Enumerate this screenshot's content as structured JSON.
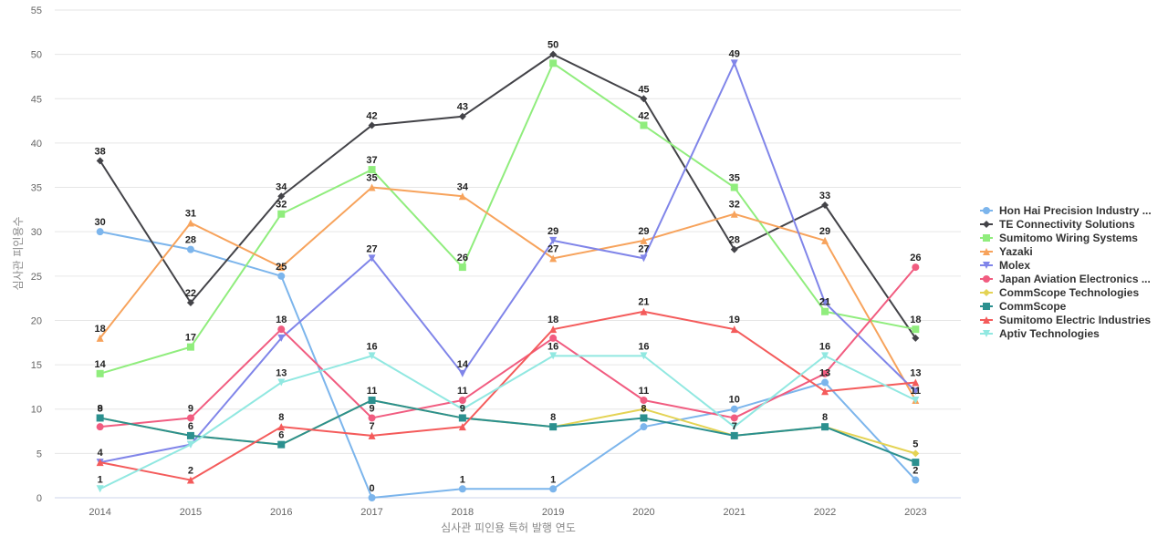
{
  "chart_data": {
    "type": "line",
    "title": "",
    "xlabel": "심사관 피인용 특허 발행 연도",
    "ylabel": "심사관 피인용수",
    "ylim": [
      0,
      55
    ],
    "yticks": [
      0,
      5,
      10,
      15,
      20,
      25,
      30,
      35,
      40,
      45,
      50,
      55
    ],
    "grid": true,
    "legend_position": "right",
    "x": [
      "2014",
      "2015",
      "2016",
      "2017",
      "2018",
      "2019",
      "2020",
      "2021",
      "2022",
      "2023"
    ],
    "series": [
      {
        "name": "Hon Hai Precision Industry ...",
        "color": "#7cb5ec",
        "marker": "circle",
        "values": [
          30,
          28,
          25,
          0,
          1,
          1,
          8,
          10,
          13,
          2
        ]
      },
      {
        "name": "TE Connectivity Solutions",
        "color": "#434348",
        "marker": "diamond",
        "values": [
          38,
          22,
          34,
          42,
          43,
          50,
          45,
          28,
          33,
          18
        ]
      },
      {
        "name": "Sumitomo Wiring Systems",
        "color": "#90ed7d",
        "marker": "square",
        "values": [
          14,
          17,
          32,
          37,
          26,
          49,
          42,
          35,
          21,
          19
        ]
      },
      {
        "name": "Yazaki",
        "color": "#f7a35c",
        "marker": "triangle",
        "values": [
          18,
          31,
          26,
          35,
          34,
          27,
          29,
          32,
          29,
          11
        ]
      },
      {
        "name": "Molex",
        "color": "#8085e9",
        "marker": "triangle-down",
        "values": [
          4,
          6,
          18,
          27,
          14,
          29,
          27,
          49,
          22,
          12
        ]
      },
      {
        "name": "Japan Aviation Electronics ...",
        "color": "#f15c80",
        "marker": "circle",
        "values": [
          8,
          9,
          19,
          9,
          11,
          18,
          11,
          9,
          14,
          26
        ]
      },
      {
        "name": "CommScope Technologies",
        "color": "#e4d354",
        "marker": "diamond",
        "values": [
          9,
          7,
          6,
          11,
          9,
          8,
          10,
          7,
          8,
          5
        ]
      },
      {
        "name": "CommScope",
        "color": "#2b908f",
        "marker": "square",
        "values": [
          9,
          7,
          6,
          11,
          9,
          8,
          9,
          7,
          8,
          4
        ]
      },
      {
        "name": "Sumitomo Electric Industries",
        "color": "#f45b5b",
        "marker": "triangle",
        "values": [
          4,
          2,
          8,
          7,
          8,
          19,
          21,
          19,
          12,
          13
        ]
      },
      {
        "name": "Aptiv Technologies",
        "color": "#91e8e1",
        "marker": "triangle-down",
        "values": [
          1,
          6,
          13,
          16,
          10,
          16,
          16,
          8,
          16,
          11
        ]
      }
    ],
    "data_labels": [
      {
        "x": "2014",
        "y": 38,
        "text": "38"
      },
      {
        "x": "2014",
        "y": 30,
        "text": "30"
      },
      {
        "x": "2014",
        "y": 18,
        "text": "18"
      },
      {
        "x": "2014",
        "y": 14,
        "text": "14"
      },
      {
        "x": "2014",
        "y": 9,
        "text": "8"
      },
      {
        "x": "2014",
        "y": 9,
        "text": "9"
      },
      {
        "x": "2014",
        "y": 4,
        "text": "4"
      },
      {
        "x": "2014",
        "y": 1,
        "text": "1"
      },
      {
        "x": "2015",
        "y": 31,
        "text": "31"
      },
      {
        "x": "2015",
        "y": 28,
        "text": "28"
      },
      {
        "x": "2015",
        "y": 22,
        "text": "22"
      },
      {
        "x": "2015",
        "y": 17,
        "text": "17"
      },
      {
        "x": "2015",
        "y": 9,
        "text": "9"
      },
      {
        "x": "2015",
        "y": 7,
        "text": "6"
      },
      {
        "x": "2015",
        "y": 2,
        "text": "2"
      },
      {
        "x": "2016",
        "y": 34,
        "text": "34"
      },
      {
        "x": "2016",
        "y": 32,
        "text": "32"
      },
      {
        "x": "2016",
        "y": 25,
        "text": "25"
      },
      {
        "x": "2016",
        "y": 19,
        "text": "18"
      },
      {
        "x": "2016",
        "y": 13,
        "text": "13"
      },
      {
        "x": "2016",
        "y": 8,
        "text": "8"
      },
      {
        "x": "2016",
        "y": 6,
        "text": "6"
      },
      {
        "x": "2017",
        "y": 42,
        "text": "42"
      },
      {
        "x": "2017",
        "y": 37,
        "text": "37"
      },
      {
        "x": "2017",
        "y": 35,
        "text": "35"
      },
      {
        "x": "2017",
        "y": 27,
        "text": "27"
      },
      {
        "x": "2017",
        "y": 16,
        "text": "16"
      },
      {
        "x": "2017",
        "y": 11,
        "text": "11"
      },
      {
        "x": "2017",
        "y": 9,
        "text": "9"
      },
      {
        "x": "2017",
        "y": 7,
        "text": "7"
      },
      {
        "x": "2017",
        "y": 0,
        "text": "0"
      },
      {
        "x": "2018",
        "y": 43,
        "text": "43"
      },
      {
        "x": "2018",
        "y": 34,
        "text": "34"
      },
      {
        "x": "2018",
        "y": 26,
        "text": "26"
      },
      {
        "x": "2018",
        "y": 14,
        "text": "14"
      },
      {
        "x": "2018",
        "y": 11,
        "text": "11"
      },
      {
        "x": "2018",
        "y": 9,
        "text": "9"
      },
      {
        "x": "2018",
        "y": 1,
        "text": "1"
      },
      {
        "x": "2019",
        "y": 50,
        "text": "50"
      },
      {
        "x": "2019",
        "y": 29,
        "text": "29"
      },
      {
        "x": "2019",
        "y": 27,
        "text": "27"
      },
      {
        "x": "2019",
        "y": 19,
        "text": "18"
      },
      {
        "x": "2019",
        "y": 16,
        "text": "16"
      },
      {
        "x": "2019",
        "y": 8,
        "text": "8"
      },
      {
        "x": "2019",
        "y": 1,
        "text": "1"
      },
      {
        "x": "2020",
        "y": 45,
        "text": "45"
      },
      {
        "x": "2020",
        "y": 42,
        "text": "42"
      },
      {
        "x": "2020",
        "y": 29,
        "text": "29"
      },
      {
        "x": "2020",
        "y": 27,
        "text": "27"
      },
      {
        "x": "2020",
        "y": 21,
        "text": "21"
      },
      {
        "x": "2020",
        "y": 16,
        "text": "16"
      },
      {
        "x": "2020",
        "y": 11,
        "text": "11"
      },
      {
        "x": "2020",
        "y": 9,
        "text": "8"
      },
      {
        "x": "2021",
        "y": 49,
        "text": "49"
      },
      {
        "x": "2021",
        "y": 35,
        "text": "35"
      },
      {
        "x": "2021",
        "y": 32,
        "text": "32"
      },
      {
        "x": "2021",
        "y": 28,
        "text": "28"
      },
      {
        "x": "2021",
        "y": 19,
        "text": "19"
      },
      {
        "x": "2021",
        "y": 10,
        "text": "10"
      },
      {
        "x": "2021",
        "y": 7,
        "text": "7"
      },
      {
        "x": "2022",
        "y": 33,
        "text": "33"
      },
      {
        "x": "2022",
        "y": 29,
        "text": "29"
      },
      {
        "x": "2022",
        "y": 21,
        "text": "21"
      },
      {
        "x": "2022",
        "y": 16,
        "text": "16"
      },
      {
        "x": "2022",
        "y": 13,
        "text": "13"
      },
      {
        "x": "2022",
        "y": 8,
        "text": "8"
      },
      {
        "x": "2023",
        "y": 26,
        "text": "26"
      },
      {
        "x": "2023",
        "y": 19,
        "text": "18"
      },
      {
        "x": "2023",
        "y": 13,
        "text": "13"
      },
      {
        "x": "2023",
        "y": 11,
        "text": "11"
      },
      {
        "x": "2023",
        "y": 5,
        "text": "5"
      },
      {
        "x": "2023",
        "y": 2,
        "text": "2"
      }
    ]
  }
}
